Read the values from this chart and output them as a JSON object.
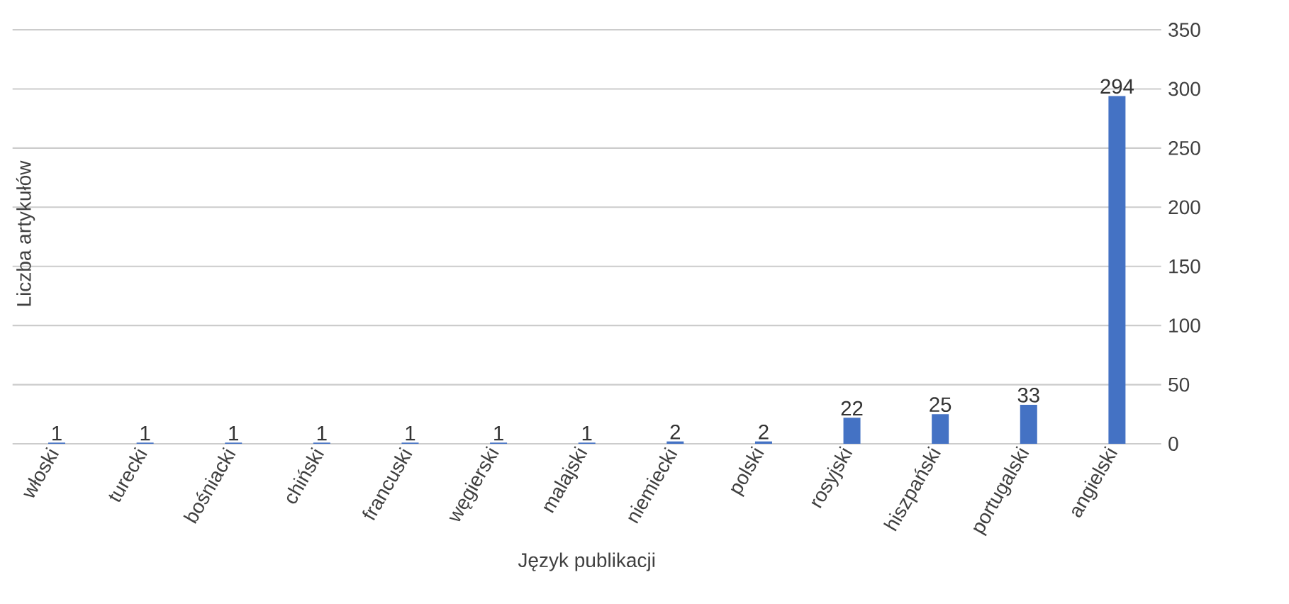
{
  "chart_data": {
    "type": "bar",
    "xlabel": "Język publikacji",
    "ylabel": "Liczba artykułów",
    "categories": [
      "włoski",
      "turecki",
      "bośniacki",
      "chiński",
      "francuski",
      "węgierski",
      "malajski",
      "niemiecki",
      "polski",
      "rosyjski",
      "hiszpański",
      "portugalski",
      "angielski"
    ],
    "values": [
      1,
      1,
      1,
      1,
      1,
      1,
      1,
      2,
      2,
      22,
      25,
      33,
      294
    ],
    "color": "#4472c4",
    "ylim": [
      0,
      350
    ],
    "yticks": [
      0,
      50,
      100,
      150,
      200,
      250,
      300,
      350
    ],
    "grid": "y",
    "data_labels": true
  }
}
